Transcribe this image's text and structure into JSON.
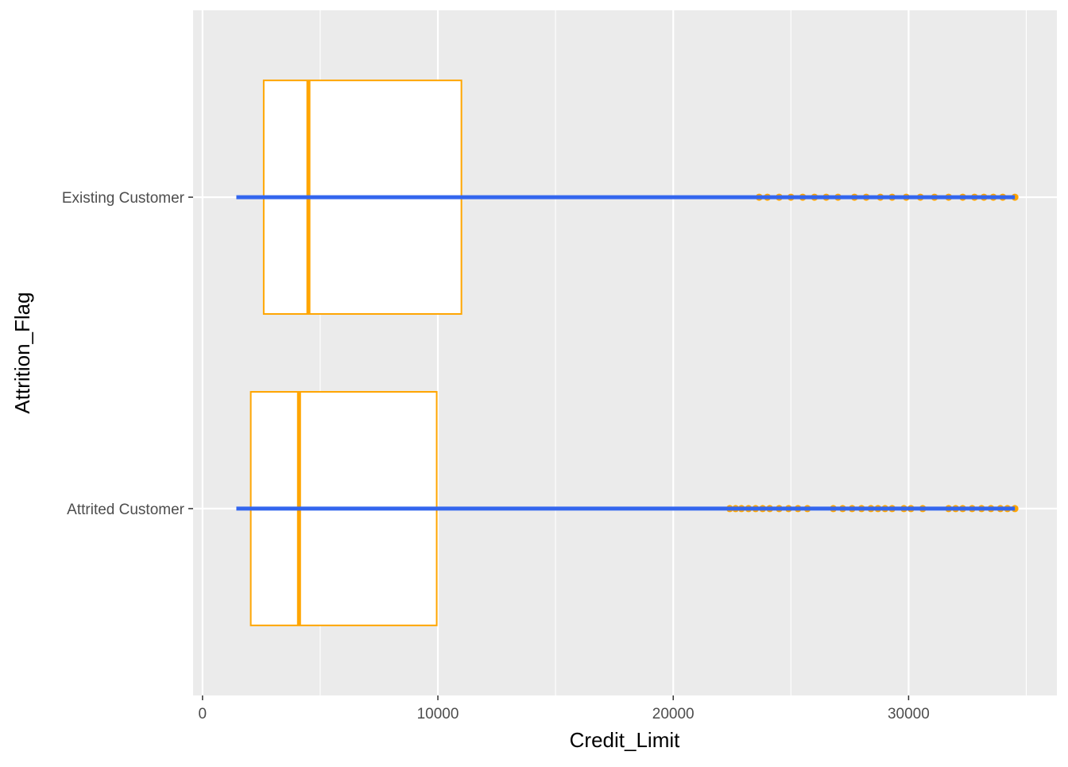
{
  "chart_data": {
    "type": "boxplot",
    "orientation": "horizontal",
    "xlabel": "Credit_Limit",
    "ylabel": "Attrition_Flag",
    "xlim": [
      -400,
      36300
    ],
    "x_ticks": [
      0,
      10000,
      20000,
      30000
    ],
    "x_minor_ticks": [
      5000,
      15000,
      25000,
      35000
    ],
    "categories": [
      "Existing Customer",
      "Attrited Customer"
    ],
    "grid": true,
    "panel_background": "#ebebeb",
    "colors": {
      "box_outline": "#ffa500",
      "whisker_line": "#3366ee",
      "box_fill": "#ffffff",
      "grid": "#ffffff"
    },
    "boxes": [
      {
        "category": "Existing Customer",
        "whisker_low": 1438,
        "q1": 2600,
        "median": 4500,
        "q3": 11000,
        "whisker_high": 34516,
        "outliers": [
          23650,
          24000,
          24500,
          25000,
          25500,
          26000,
          26500,
          27000,
          27700,
          28200,
          28800,
          29300,
          29900,
          30500,
          31100,
          31700,
          32300,
          32800,
          33200,
          33600,
          34000,
          34516
        ]
      },
      {
        "category": "Attrited Customer",
        "whisker_low": 1438,
        "q1": 2050,
        "median": 4100,
        "q3": 9950,
        "whisker_high": 34516,
        "outliers": [
          22400,
          22650,
          22900,
          23200,
          23500,
          23800,
          24100,
          24500,
          24900,
          25300,
          25700,
          26800,
          27200,
          27600,
          28000,
          28400,
          28700,
          29000,
          29300,
          29800,
          30100,
          30600,
          31700,
          32000,
          32300,
          32700,
          33100,
          33500,
          33900,
          34200,
          34516
        ]
      }
    ]
  }
}
